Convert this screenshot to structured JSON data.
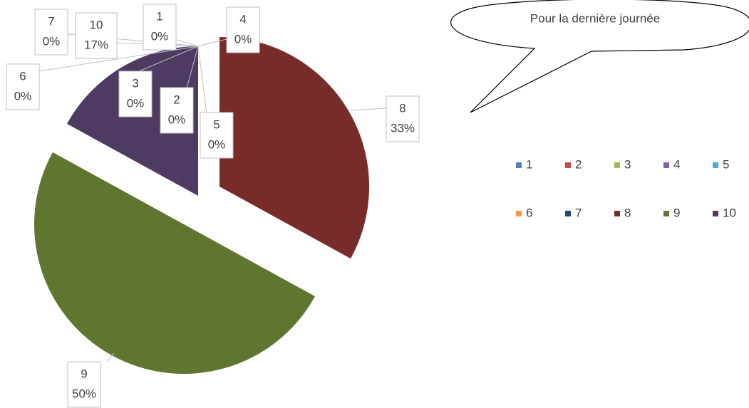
{
  "chart_data": {
    "type": "pie",
    "annotation": "Pour la dernière journée",
    "categories": [
      "1",
      "2",
      "3",
      "4",
      "5",
      "6",
      "7",
      "8",
      "9",
      "10"
    ],
    "values": [
      0,
      0,
      0,
      0,
      0,
      0,
      0,
      33,
      50,
      17
    ],
    "value_labels": [
      "0%",
      "0%",
      "0%",
      "0%",
      "0%",
      "0%",
      "0%",
      "33%",
      "50%",
      "17%"
    ],
    "colors": [
      "#4f81bd",
      "#c0504d",
      "#9bbb59",
      "#8064a2",
      "#4bacc6",
      "#f79646",
      "#1f497d",
      "#772c2a",
      "#5f7530",
      "#4d3b62"
    ],
    "legend": "right"
  }
}
